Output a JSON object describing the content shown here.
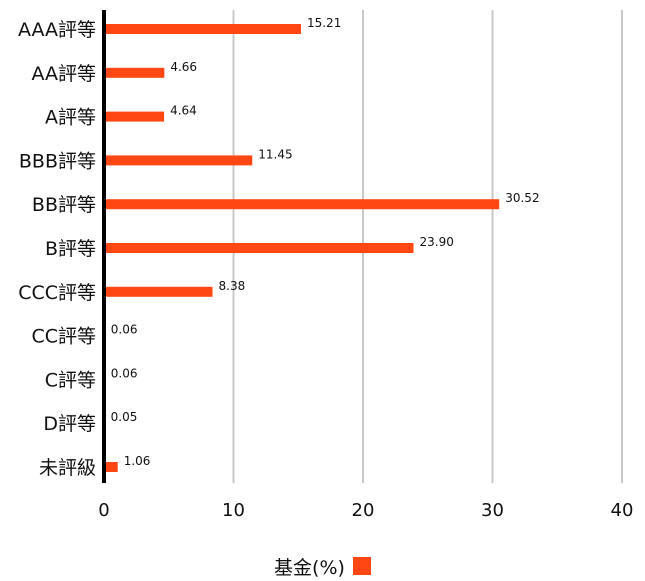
{
  "chart_data": {
    "type": "bar",
    "orientation": "horizontal",
    "categories": [
      "AAA評等",
      "AA評等",
      "A評等",
      "BBB評等",
      "BB評等",
      "B評等",
      "CCC評等",
      "CC評等",
      "C評等",
      "D評等",
      "未評級"
    ],
    "series": [
      {
        "name": "基金(%)",
        "color": "#ff4713",
        "values": [
          15.21,
          4.66,
          4.64,
          11.45,
          30.52,
          23.9,
          8.38,
          0.06,
          0.06,
          0.05,
          1.06
        ],
        "value_labels": [
          "15.21",
          "4.66",
          "4.64",
          "11.45",
          "30.52",
          "23.90",
          "8.38",
          "0.06",
          "0.06",
          "0.05",
          "1.06"
        ]
      }
    ],
    "xlim": [
      0,
      40
    ],
    "xticks": [
      0,
      10,
      20,
      30,
      40
    ],
    "xtick_labels": [
      "0",
      "10",
      "20",
      "30",
      "40"
    ],
    "grid": "vertical",
    "grid_color": "#c8c8c8",
    "axis_color": "#000000",
    "legend": {
      "position": "bottom-center",
      "label": "基金(%)"
    }
  }
}
